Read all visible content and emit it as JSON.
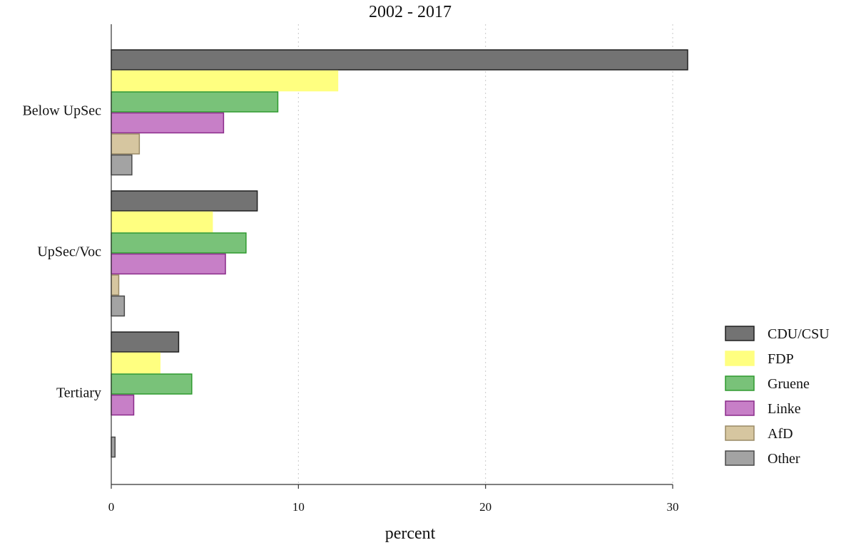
{
  "chart_data": {
    "type": "bar",
    "orientation": "horizontal",
    "title": "2002 - 2017",
    "xlabel": "percent",
    "ylabel": "",
    "xlim": [
      0,
      30.8
    ],
    "xticks": [
      0,
      10,
      20,
      30
    ],
    "grid": "vertical dotted",
    "legend_position": "right",
    "categories": [
      "Below UpSec",
      "UpSec/Voc",
      "Tertiary"
    ],
    "series": [
      {
        "name": "CDU/CSU",
        "color": "#737373",
        "stroke": "#1f1f1f",
        "values": [
          30.8,
          7.8,
          3.6
        ]
      },
      {
        "name": "FDP",
        "color": "#ffff80",
        "stroke": "#ffff80",
        "values": [
          12.1,
          5.4,
          2.6
        ]
      },
      {
        "name": "Gruene",
        "color": "#79c279",
        "stroke": "#2f9a2f",
        "values": [
          8.9,
          7.2,
          4.3
        ]
      },
      {
        "name": "Linke",
        "color": "#c77fc7",
        "stroke": "#8a2b8a",
        "values": [
          6.0,
          6.1,
          1.2
        ]
      },
      {
        "name": "AfD",
        "color": "#d6c6a0",
        "stroke": "#9a8a66",
        "values": [
          1.5,
          0.4,
          0.0
        ]
      },
      {
        "name": "Other",
        "color": "#a3a3a3",
        "stroke": "#4a4a4a",
        "values": [
          1.1,
          0.7,
          0.2
        ]
      }
    ]
  }
}
